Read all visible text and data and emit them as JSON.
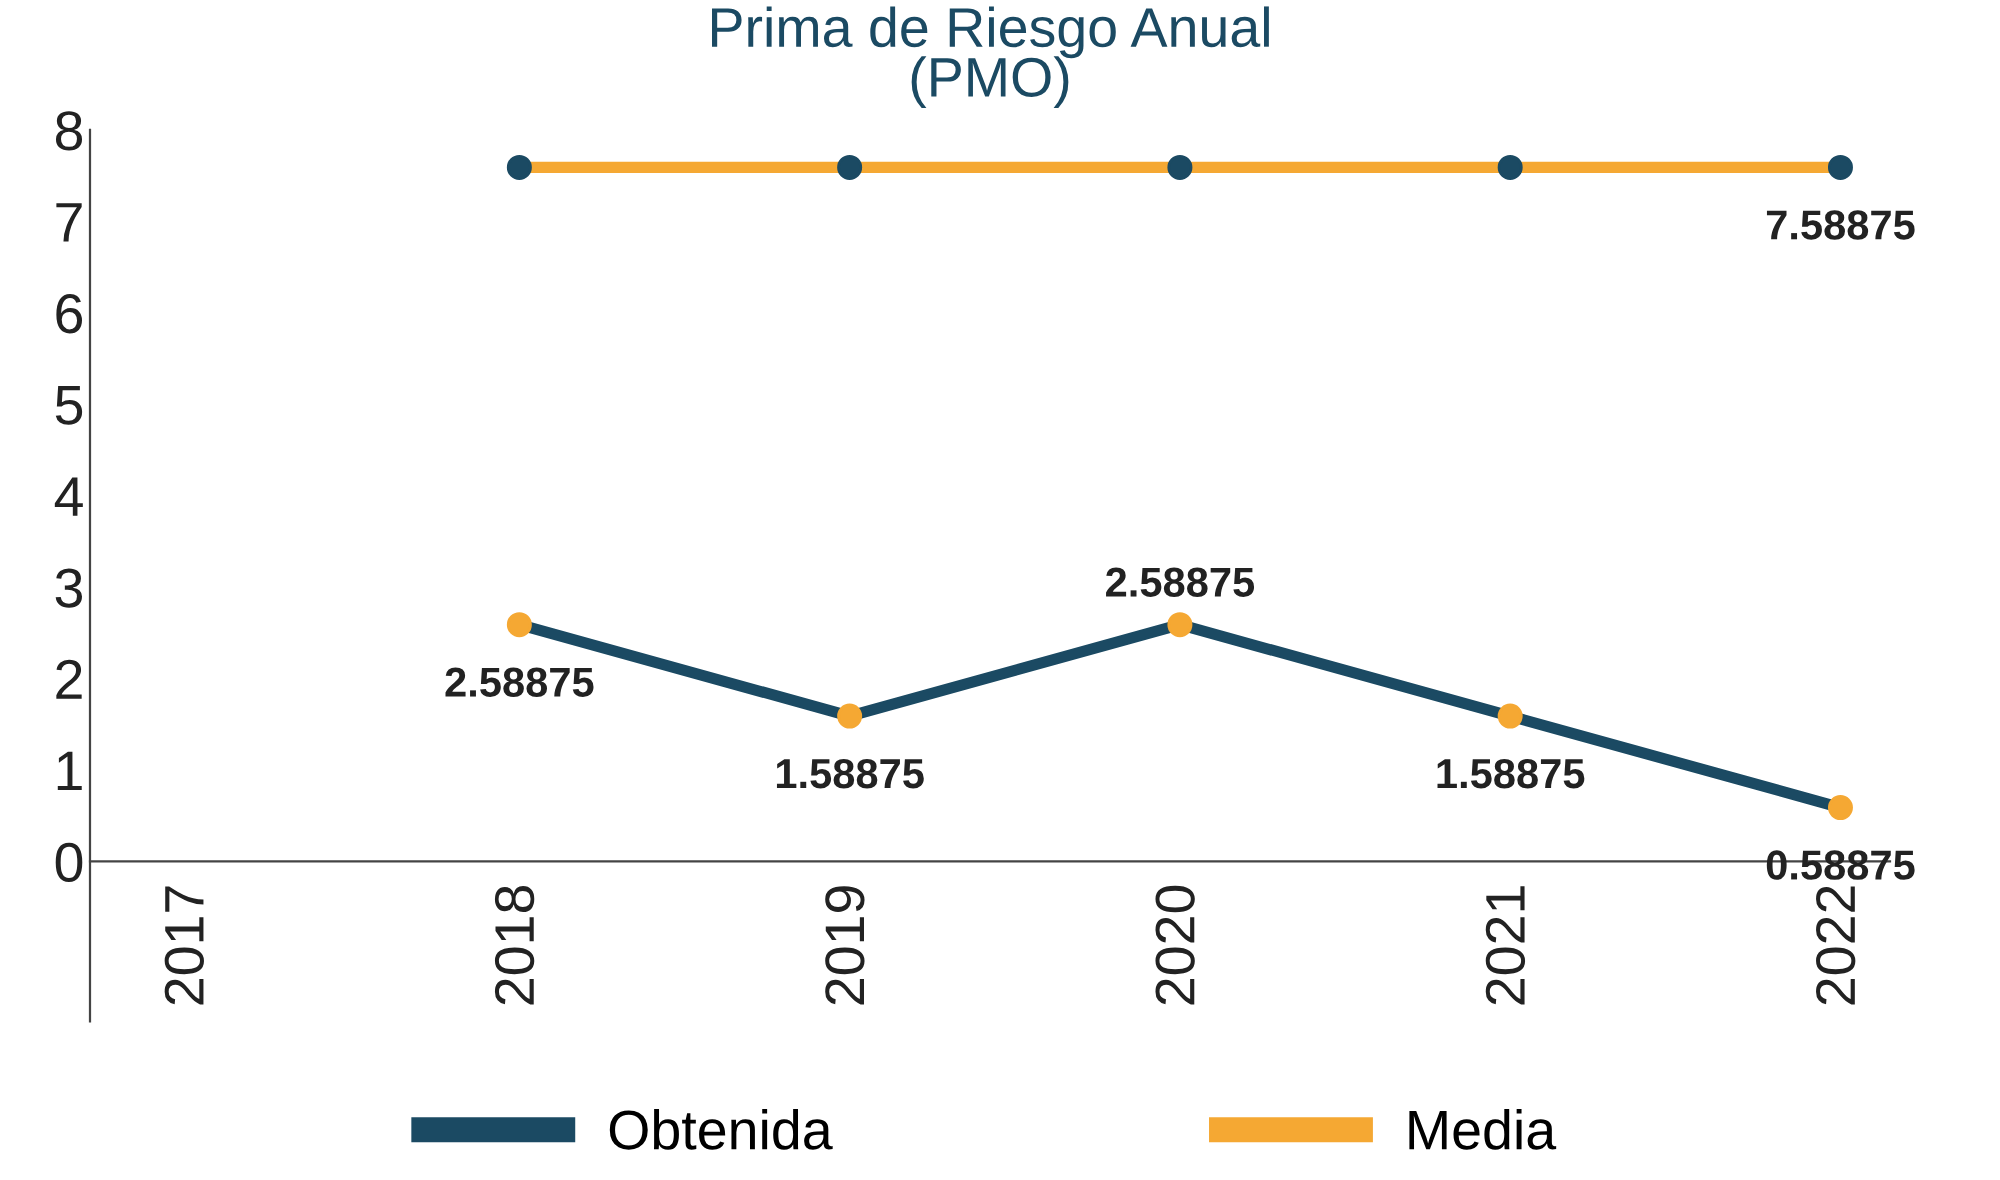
{
  "chart_data": {
    "type": "line",
    "title": "Prima de Riesgo Anual\n(PMO)",
    "categories": [
      "2017",
      "2018",
      "2019",
      "2020",
      "2021",
      "2022"
    ],
    "series": [
      {
        "name": "Obtenida",
        "color": "#1b4a63",
        "colors": [
          null,
          "#f5a833",
          "#f5a833",
          "#f5a833",
          "#f5a833",
          "#f5a833"
        ],
        "values": [
          null,
          2.58875,
          1.58875,
          2.58875,
          1.58875,
          0.58875
        ],
        "value_labels": [
          null,
          "2.58875",
          "1.58875",
          "2.58875",
          "1.58875",
          "0.58875"
        ]
      },
      {
        "name": "Media",
        "color": "#f5a833",
        "colors": [
          null,
          "#1b4a63",
          "#1b4a63",
          "#1b4a63",
          "#1b4a63",
          "#1b4a63"
        ],
        "values": [
          null,
          7.58875,
          7.58875,
          7.58875,
          7.58875,
          7.58875
        ],
        "value_labels": [
          null,
          null,
          null,
          null,
          null,
          "7.58875"
        ]
      }
    ],
    "ylim": [
      0,
      8
    ],
    "yticks": [
      0,
      1,
      2,
      3,
      4,
      5,
      6,
      7,
      8
    ],
    "grid": false,
    "legend": "bottom",
    "marker": "circle",
    "line_style": "solid"
  }
}
